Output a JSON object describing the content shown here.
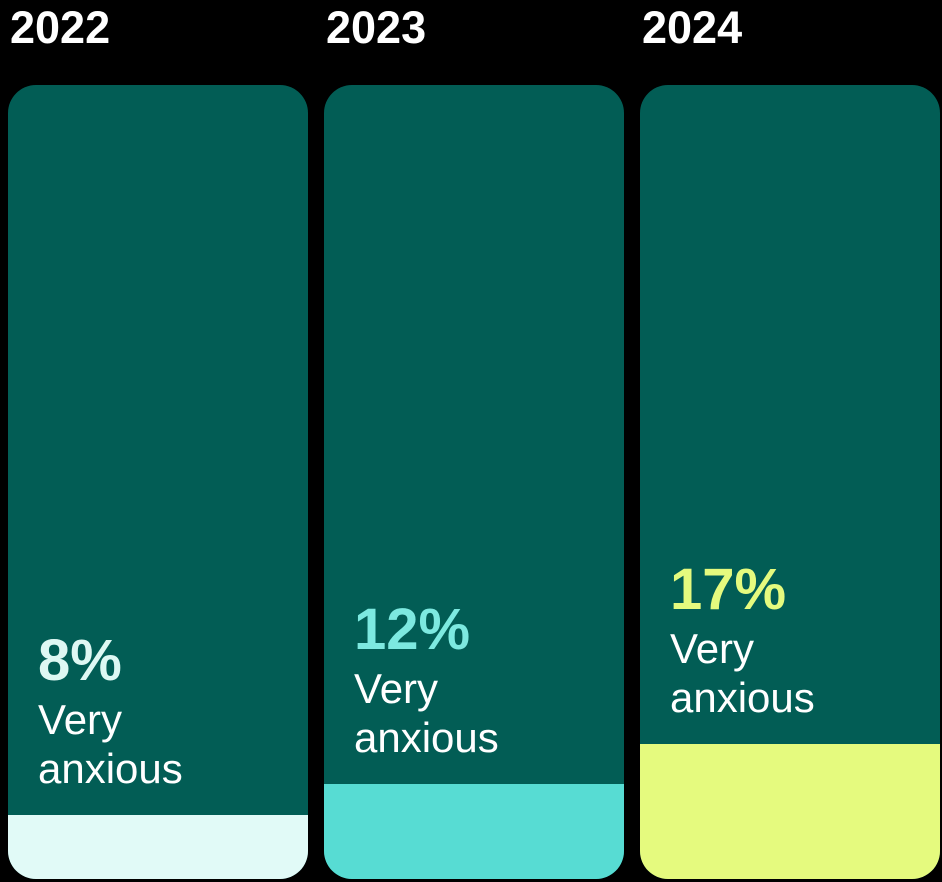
{
  "background_color": "#000000",
  "chart_data": {
    "type": "bar",
    "subtype": "filled-column-cards",
    "categories": [
      "2022",
      "2023",
      "2024"
    ],
    "series": [
      {
        "name": "Very anxious",
        "values": [
          8,
          12,
          17
        ]
      }
    ],
    "unit": "%",
    "ylim": [
      0,
      100
    ],
    "grid": false,
    "legend": false,
    "bar_color": "#025D55",
    "year_label_color": "#FFFFFF",
    "caption_color": "#FFFFFF",
    "columns": [
      {
        "year": "2022",
        "value_pct": 8,
        "value_label": "8%",
        "caption": "Very anxious",
        "number_color": "#DEF8F3",
        "number_weight": "700",
        "segment_color": "#E1FAF7"
      },
      {
        "year": "2023",
        "value_pct": 12,
        "value_label": "12%",
        "caption": "Very anxious",
        "number_color": "#7DE9E0",
        "number_weight": "600",
        "segment_color": "#57DCD3"
      },
      {
        "year": "2024",
        "value_pct": 17,
        "value_label": "17%",
        "caption": "Very anxious",
        "number_color": "#E5FA7E",
        "number_weight": "800",
        "segment_color": "#E5FA7E"
      }
    ]
  }
}
